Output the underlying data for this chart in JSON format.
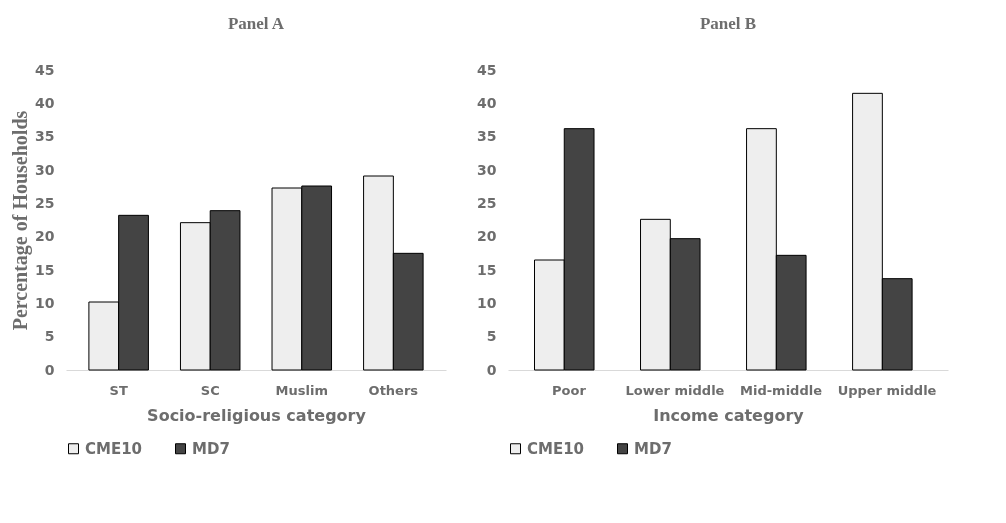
{
  "chart_data": [
    {
      "type": "bar",
      "title": "Panel A",
      "xlabel": "Socio-religious category",
      "ylabel": "Percentage of Households",
      "categories": [
        "ST",
        "SC",
        "Muslim",
        "Others"
      ],
      "ylim": [
        0,
        45
      ],
      "yticks": [
        0,
        5,
        10,
        15,
        20,
        25,
        30,
        35,
        40,
        45
      ],
      "grid": false,
      "legend": "bottom",
      "series": [
        {
          "name": "CME10",
          "color": "#eeeeee",
          "values": [
            10.2,
            22.1,
            27.3,
            29.1
          ]
        },
        {
          "name": "MD7",
          "color": "#444444",
          "values": [
            23.2,
            23.9,
            27.6,
            17.5
          ]
        }
      ]
    },
    {
      "type": "bar",
      "title": "Panel B",
      "xlabel": "Income category",
      "categories": [
        "Poor",
        "Lower middle",
        "Mid-middle",
        "Upper middle"
      ],
      "ylim": [
        0,
        45
      ],
      "yticks": [
        0,
        5,
        10,
        15,
        20,
        25,
        30,
        35,
        40,
        45
      ],
      "grid": false,
      "legend": "bottom",
      "series": [
        {
          "name": "CME10",
          "color": "#eeeeee",
          "values": [
            16.5,
            22.6,
            36.2,
            41.5
          ]
        },
        {
          "name": "MD7",
          "color": "#444444",
          "values": [
            36.2,
            19.7,
            17.2,
            13.7
          ]
        }
      ]
    }
  ]
}
